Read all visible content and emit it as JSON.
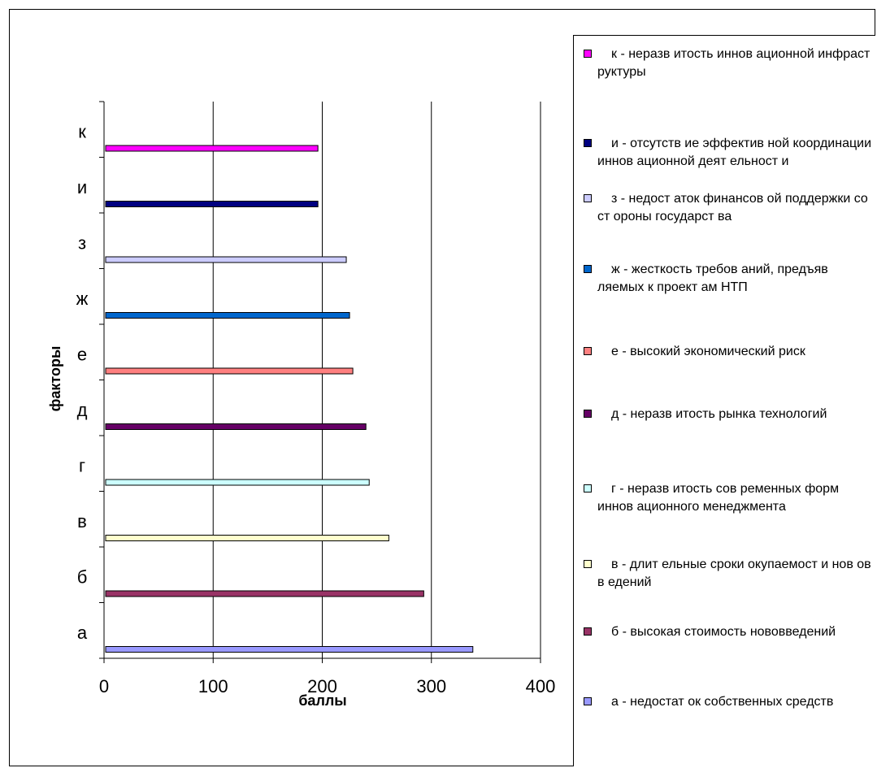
{
  "chart_data": {
    "type": "bar",
    "orientation": "horizontal",
    "xlabel": "баллы",
    "ylabel": "факторы",
    "xlim": [
      0,
      400
    ],
    "xticks": [
      "0",
      "100",
      "200",
      "300",
      "400"
    ],
    "vertical_grid": true,
    "legend_position": "right",
    "categories": [
      "а",
      "б",
      "в",
      "г",
      "д",
      "е",
      "ж",
      "з",
      "и",
      "к"
    ],
    "values": [
      338,
      293,
      261,
      243,
      240,
      228,
      225,
      222,
      196,
      196
    ],
    "colors": [
      "#9999FF",
      "#993366",
      "#FFFFCC",
      "#CCFFFF",
      "#660066",
      "#FF8080",
      "#0066CC",
      "#CCCCFF",
      "#000080",
      "#FF00FF"
    ],
    "legend": [
      {
        "label": "к - неразв итость иннов ационной инфраст руктуры",
        "color": "#FF00FF"
      },
      {
        "label": "и - отсутств ие эффектив ной координации иннов ационной деят ельност и",
        "color": "#000080"
      },
      {
        "label": "з - недост аток финансов ой поддержки со ст ороны государст ва",
        "color": "#CCCCFF"
      },
      {
        "label": "ж - жесткость требов аний, предъяв ляемых к проект ам НТП",
        "color": "#0066CC"
      },
      {
        "label": "е - высокий экономический риск",
        "color": "#FF8080"
      },
      {
        "label": "д - неразв итость рынка технологий",
        "color": "#660066"
      },
      {
        "label": "г - неразв итость сов ременных форм иннов ационного менеджмента",
        "color": "#CCFFFF"
      },
      {
        "label": "в - длит ельные сроки окупаемост и нов ов в едений",
        "color": "#FFFFCC"
      },
      {
        "label": "б - высокая стоимость нововведений",
        "color": "#993366"
      },
      {
        "label": "а - недостат ок собственных средств",
        "color": "#9999FF"
      }
    ]
  }
}
